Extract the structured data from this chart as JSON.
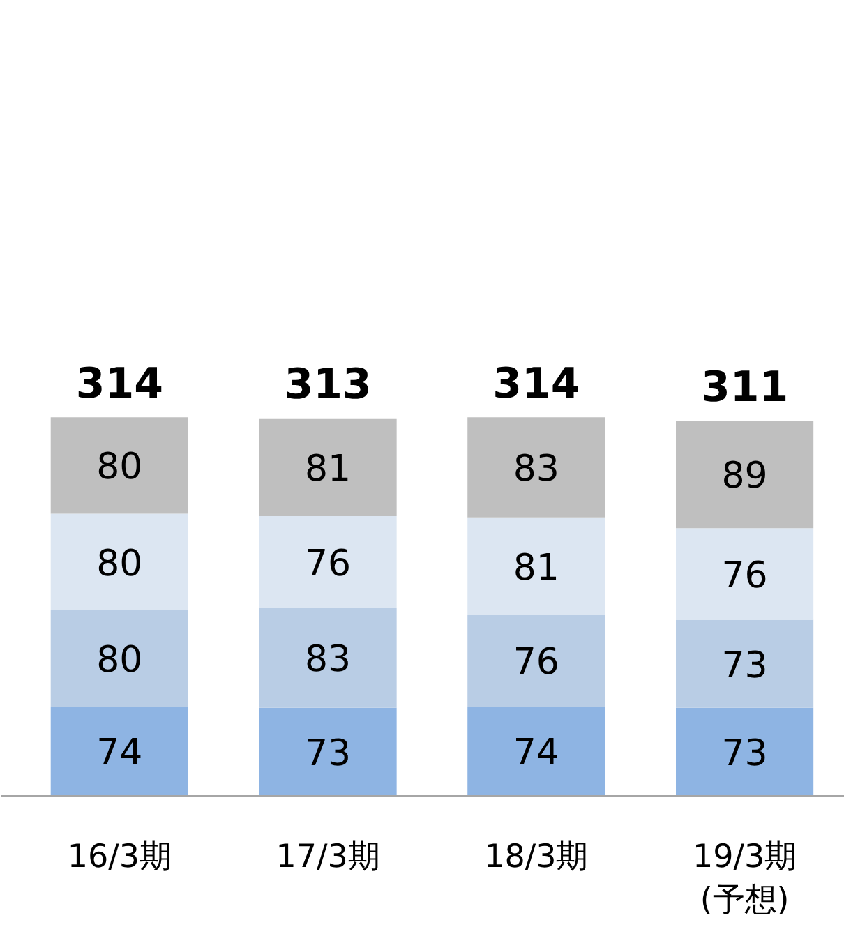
{
  "chart_data": {
    "type": "bar",
    "stacked": true,
    "data_labels": true,
    "categories": [
      "16/3期",
      "17/3期",
      "18/3期",
      "19/3期\n(予想)"
    ],
    "series": [
      {
        "color": "#8eb4e3",
        "values": [
          74,
          73,
          74,
          73
        ]
      },
      {
        "color": "#b9cde5",
        "values": [
          80,
          83,
          76,
          73
        ]
      },
      {
        "color": "#dce6f2",
        "values": [
          80,
          76,
          81,
          76
        ]
      },
      {
        "color": "#bfbfbf",
        "values": [
          80,
          81,
          83,
          89
        ]
      }
    ],
    "totals": [
      "314",
      "313",
      "314",
      "311"
    ],
    "grid": false
  }
}
